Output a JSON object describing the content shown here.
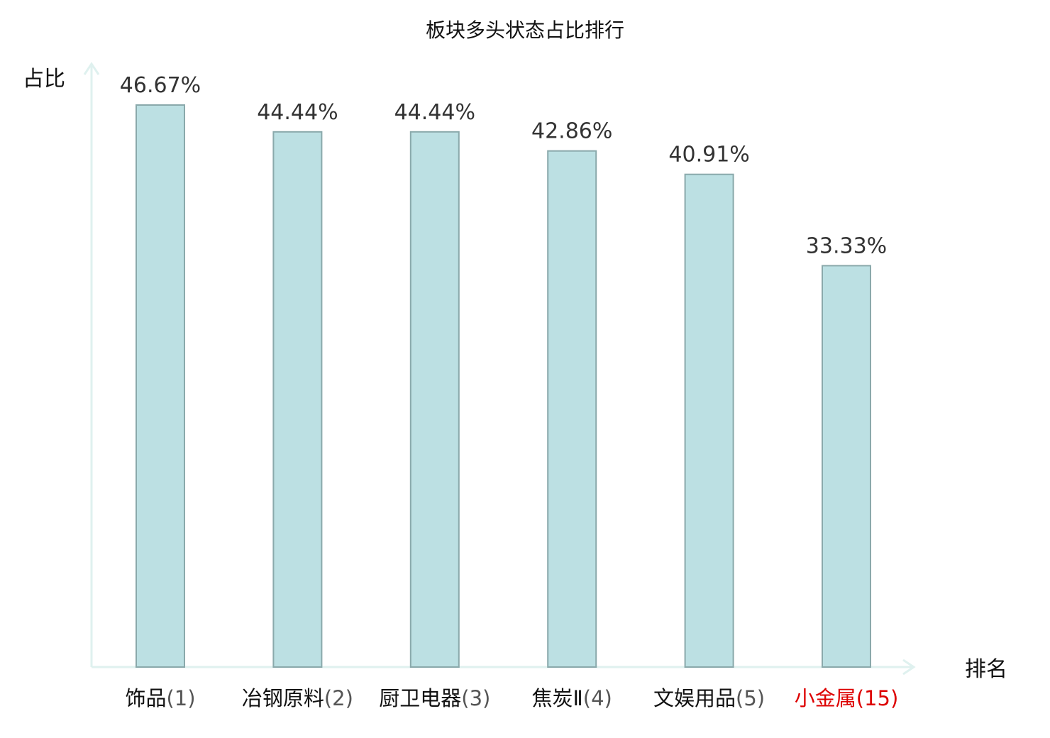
{
  "chart_data": {
    "type": "bar",
    "title": "板块多头状态占比排行",
    "xlabel": "排名",
    "ylabel": "占比",
    "categories": [
      {
        "name": "饰品",
        "rank": "(1)",
        "highlight": false
      },
      {
        "name": "冶钢原料",
        "rank": "(2)",
        "highlight": false
      },
      {
        "name": "厨卫电器",
        "rank": "(3)",
        "highlight": false
      },
      {
        "name": "焦炭Ⅱ",
        "rank": "(4)",
        "highlight": false
      },
      {
        "name": "文娱用品",
        "rank": "(5)",
        "highlight": false
      },
      {
        "name": "小金属",
        "rank": "(15)",
        "highlight": true
      }
    ],
    "values": [
      46.67,
      44.44,
      44.44,
      42.86,
      40.91,
      33.33
    ],
    "value_labels": [
      "46.67%",
      "44.44%",
      "44.44%",
      "42.86%",
      "40.91%",
      "33.33%"
    ],
    "ylim": [
      0,
      46.67
    ],
    "grid": false,
    "legend": "none",
    "colors": {
      "bar_fill": "#bce0e3",
      "bar_stroke": "#8aa9ab",
      "axis": "#dff1ef",
      "label_default": "#111111",
      "label_highlight": "#dd0000",
      "rank_default": "#555555"
    }
  }
}
